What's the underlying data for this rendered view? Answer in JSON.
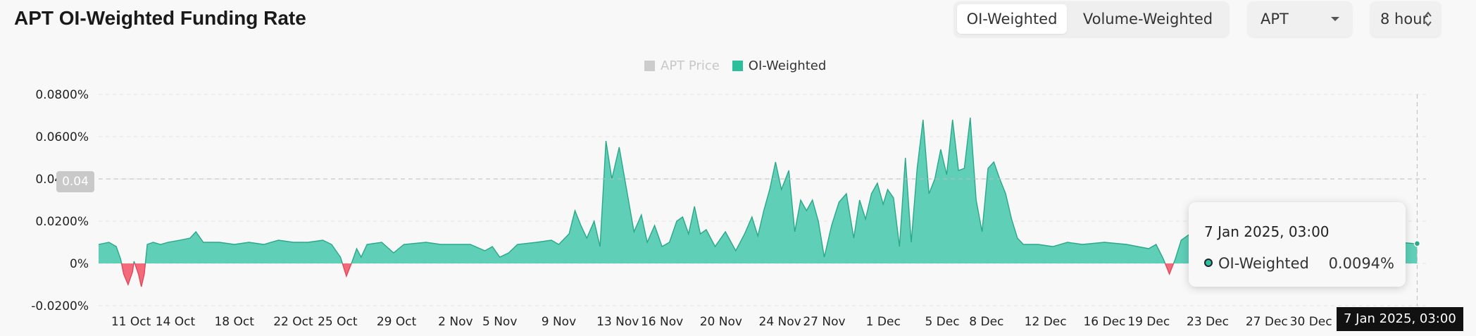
{
  "header": {
    "title": "APT OI-Weighted Funding Rate",
    "toggle": {
      "options": [
        "OI-Weighted",
        "Volume-Weighted"
      ],
      "active": "OI-Weighted"
    },
    "symbol_select": {
      "value": "APT",
      "icon": "chevron-down-icon"
    },
    "interval_select": {
      "value": "8 hour",
      "icon": "up-down-arrows-icon"
    }
  },
  "legend": {
    "items": [
      {
        "label": "APT Price",
        "color": "#cccccc",
        "hidden": true
      },
      {
        "label": "OI-Weighted",
        "color": "#2bbf9b",
        "hidden": false
      }
    ]
  },
  "tooltip": {
    "date": "7 Jan 2025, 03:00",
    "series": "OI-Weighted",
    "value": "0.0094%",
    "dot_color": "#2bbf9b"
  },
  "crosshair": {
    "x_label": "7 Jan 2025, 03:00",
    "y_label": "0.04"
  },
  "colors": {
    "positive_fill": "#5fcfb7",
    "positive_stroke": "#2aa888",
    "negative_fill": "#f36b7a",
    "negative_stroke": "#e0475a",
    "grid": "#e3e3e3"
  },
  "chart_data": {
    "type": "area",
    "title": "APT OI-Weighted Funding Rate",
    "series": [
      {
        "name": "OI-Weighted",
        "unit": "%"
      }
    ],
    "ylim": [
      -0.02,
      0.08
    ],
    "y_ticks": [
      "0.0800%",
      "0.0600%",
      "0.0400%",
      "0.0200%",
      "0%",
      "-0.0200%"
    ],
    "y_tick_values": [
      0.08,
      0.06,
      0.04,
      0.02,
      0,
      -0.02
    ],
    "x_ticks": [
      "11 Oct",
      "14 Oct",
      "18 Oct",
      "22 Oct",
      "25 Oct",
      "29 Oct",
      "2 Nov",
      "5 Nov",
      "9 Nov",
      "13 Nov",
      "16 Nov",
      "20 Nov",
      "24 Nov",
      "27 Nov",
      "1 Dec",
      "5 Dec",
      "8 Dec",
      "12 Dec",
      "16 Dec",
      "19 Dec",
      "23 Dec",
      "27 Dec",
      "30 Dec"
    ],
    "x_tick_days": [
      0,
      3,
      7,
      11,
      14,
      18,
      22,
      25,
      29,
      33,
      36,
      40,
      44,
      47,
      51,
      55,
      58,
      62,
      66,
      69,
      73,
      77,
      80
    ],
    "x_range_days": [
      -2.2,
      87.8
    ],
    "points": [
      [
        -2.2,
        0.009
      ],
      [
        -1.5,
        0.01
      ],
      [
        -1.0,
        0.008
      ],
      [
        -0.7,
        0.002
      ],
      [
        -0.5,
        -0.005
      ],
      [
        -0.2,
        -0.01
      ],
      [
        0.1,
        -0.004
      ],
      [
        0.2,
        0.001
      ],
      [
        0.5,
        -0.005
      ],
      [
        0.7,
        -0.011
      ],
      [
        0.9,
        -0.005
      ],
      [
        1.1,
        0.009
      ],
      [
        1.5,
        0.01
      ],
      [
        2,
        0.009
      ],
      [
        2.5,
        0.01
      ],
      [
        3.3,
        0.011
      ],
      [
        4,
        0.012
      ],
      [
        4.4,
        0.015
      ],
      [
        4.9,
        0.01
      ],
      [
        6,
        0.01
      ],
      [
        7,
        0.009
      ],
      [
        8,
        0.01
      ],
      [
        9,
        0.009
      ],
      [
        10,
        0.011
      ],
      [
        11,
        0.01
      ],
      [
        12,
        0.01
      ],
      [
        13,
        0.011
      ],
      [
        13.6,
        0.009
      ],
      [
        14.2,
        0.003
      ],
      [
        14.6,
        -0.006
      ],
      [
        15.0,
        0.001
      ],
      [
        15.3,
        0.007
      ],
      [
        15.6,
        0.003
      ],
      [
        16,
        0.009
      ],
      [
        17,
        0.01
      ],
      [
        17.8,
        0.005
      ],
      [
        18.5,
        0.009
      ],
      [
        20,
        0.01
      ],
      [
        21,
        0.009
      ],
      [
        22,
        0.009
      ],
      [
        23,
        0.009
      ],
      [
        24,
        0.006
      ],
      [
        24.5,
        0.008
      ],
      [
        25,
        0.003
      ],
      [
        25.6,
        0.005
      ],
      [
        26.2,
        0.009
      ],
      [
        27.5,
        0.01
      ],
      [
        28.5,
        0.011
      ],
      [
        29,
        0.009
      ],
      [
        29.7,
        0.014
      ],
      [
        30.1,
        0.025
      ],
      [
        30.5,
        0.018
      ],
      [
        30.9,
        0.012
      ],
      [
        31.4,
        0.02
      ],
      [
        31.8,
        0.008
      ],
      [
        32.2,
        0.058
      ],
      [
        32.6,
        0.04
      ],
      [
        33.1,
        0.055
      ],
      [
        33.6,
        0.035
      ],
      [
        34.1,
        0.015
      ],
      [
        34.6,
        0.023
      ],
      [
        35.0,
        0.01
      ],
      [
        35.5,
        0.018
      ],
      [
        36.0,
        0.008
      ],
      [
        36.5,
        0.01
      ],
      [
        37.0,
        0.02
      ],
      [
        37.4,
        0.022
      ],
      [
        37.8,
        0.014
      ],
      [
        38.2,
        0.027
      ],
      [
        38.6,
        0.014
      ],
      [
        39.0,
        0.016
      ],
      [
        39.6,
        0.008
      ],
      [
        40.3,
        0.015
      ],
      [
        41.0,
        0.006
      ],
      [
        41.6,
        0.014
      ],
      [
        42.1,
        0.022
      ],
      [
        42.5,
        0.013
      ],
      [
        42.9,
        0.025
      ],
      [
        43.3,
        0.035
      ],
      [
        43.7,
        0.048
      ],
      [
        44.1,
        0.035
      ],
      [
        44.6,
        0.044
      ],
      [
        45.0,
        0.015
      ],
      [
        45.4,
        0.03
      ],
      [
        45.8,
        0.025
      ],
      [
        46.2,
        0.03
      ],
      [
        46.6,
        0.02
      ],
      [
        47.0,
        0.003
      ],
      [
        47.5,
        0.018
      ],
      [
        48.0,
        0.029
      ],
      [
        48.5,
        0.033
      ],
      [
        49.0,
        0.012
      ],
      [
        49.4,
        0.03
      ],
      [
        49.8,
        0.021
      ],
      [
        50.2,
        0.033
      ],
      [
        50.6,
        0.038
      ],
      [
        51.0,
        0.028
      ],
      [
        51.3,
        0.035
      ],
      [
        51.7,
        0.031
      ],
      [
        52.1,
        0.008
      ],
      [
        52.5,
        0.05
      ],
      [
        52.9,
        0.01
      ],
      [
        53.3,
        0.045
      ],
      [
        53.7,
        0.068
      ],
      [
        54.1,
        0.033
      ],
      [
        54.5,
        0.04
      ],
      [
        54.9,
        0.054
      ],
      [
        55.3,
        0.042
      ],
      [
        55.7,
        0.068
      ],
      [
        56.1,
        0.044
      ],
      [
        56.5,
        0.045
      ],
      [
        56.9,
        0.069
      ],
      [
        57.3,
        0.03
      ],
      [
        57.7,
        0.015
      ],
      [
        58.1,
        0.045
      ],
      [
        58.5,
        0.048
      ],
      [
        58.9,
        0.04
      ],
      [
        59.3,
        0.033
      ],
      [
        59.7,
        0.021
      ],
      [
        60.1,
        0.012
      ],
      [
        60.5,
        0.009
      ],
      [
        61.5,
        0.009
      ],
      [
        62.5,
        0.008
      ],
      [
        63.5,
        0.01
      ],
      [
        64.5,
        0.009
      ],
      [
        66,
        0.01
      ],
      [
        67.5,
        0.009
      ],
      [
        69.0,
        0.007
      ],
      [
        69.5,
        0.009
      ],
      [
        70.0,
        0.002
      ],
      [
        70.4,
        -0.005
      ],
      [
        70.8,
        0.002
      ],
      [
        71.2,
        0.011
      ],
      [
        71.8,
        0.014
      ],
      [
        72.4,
        0.011
      ],
      [
        73.0,
        0.011
      ],
      [
        74,
        0.012
      ],
      [
        75,
        0.01
      ],
      [
        76,
        0.011
      ],
      [
        77,
        0.01
      ],
      [
        78,
        0.009
      ],
      [
        79,
        0.01
      ],
      [
        80,
        0.01
      ],
      [
        81,
        0.009
      ],
      [
        82,
        0.01
      ],
      [
        83,
        0.01
      ],
      [
        84,
        0.009
      ],
      [
        85,
        0.01
      ],
      [
        86,
        0.01
      ],
      [
        87,
        0.0094
      ],
      [
        87.2,
        0.0094
      ]
    ]
  }
}
